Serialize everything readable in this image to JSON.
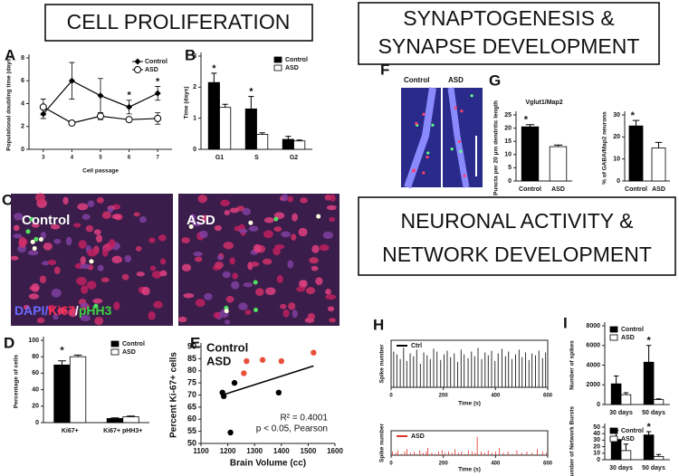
{
  "headings": {
    "cell": "CELL PROLIFERATION",
    "synapse": [
      "SYNAPTOGENESIS &",
      "SYNAPSE DEVELOPMENT"
    ],
    "neuronal": [
      "NEURONAL ACTIVITY &",
      "NETWORK DEVELOPMENT"
    ]
  },
  "panels": [
    "A",
    "B",
    "C",
    "D",
    "E",
    "F",
    "G",
    "H",
    "I"
  ],
  "image_labels": {
    "C": [
      "Control",
      "ASD"
    ],
    "F": [
      "Control",
      "ASD"
    ]
  },
  "stain_label": [
    "DAPI/",
    "Ki67",
    "/",
    "pHH3"
  ],
  "chart_data": [
    {
      "type": "line",
      "ylabel": "Populational doubling time (days)",
      "xlabel": "Cell passage",
      "x": [
        3,
        4,
        5,
        6,
        7
      ],
      "xlim": [
        2.5,
        7.5
      ],
      "xticks": [
        3,
        4,
        5,
        6,
        7
      ],
      "ylim": [
        0,
        8
      ],
      "yticks": [
        0,
        2,
        4,
        6,
        8
      ],
      "legend": "upper right",
      "series": [
        {
          "name": "Control",
          "color": "#000000",
          "marker": "diamond",
          "values": [
            3.1,
            6,
            4.7,
            3.7,
            4.9
          ],
          "errors": [
            0.4,
            1.6,
            1.5,
            0.6,
            0.6
          ]
        },
        {
          "name": "ASD",
          "color": "#000000",
          "marker": "circle-open",
          "values": [
            3.7,
            2.3,
            2.9,
            2.6,
            2.7
          ],
          "errors": [
            0.7,
            0.2,
            0.3,
            0.2,
            0.5
          ]
        }
      ],
      "stars": [
        null,
        null,
        null,
        "*",
        "*"
      ]
    },
    {
      "type": "bar",
      "ylabel": "Time (days)",
      "categories": [
        "G1",
        "S",
        "G2"
      ],
      "ylim": [
        0,
        3
      ],
      "yticks": [
        0,
        1,
        2,
        3
      ],
      "legend": "upper right",
      "series": [
        {
          "name": "Control",
          "color": "#000000",
          "values": [
            2.15,
            1.3,
            0.32
          ],
          "errors": [
            0.3,
            0.4,
            0.1
          ]
        },
        {
          "name": "ASD",
          "color": "#ffffff",
          "values": [
            1.35,
            0.48,
            0.27
          ],
          "errors": [
            0.1,
            0.05,
            0.03
          ]
        }
      ],
      "stars": [
        "*",
        "*",
        null
      ]
    },
    {
      "type": "bar",
      "ylabel": "Percentage of cells",
      "categories": [
        "Ki67+",
        "Ki67+ pHH3+"
      ],
      "ylim": [
        0,
        100
      ],
      "yticks": [
        0,
        20,
        40,
        60,
        80,
        100
      ],
      "legend": "upper right",
      "series": [
        {
          "name": "Control",
          "color": "#000000",
          "values": [
            70,
            5
          ],
          "errors": [
            5,
            0.8
          ]
        },
        {
          "name": "ASD",
          "color": "#ffffff",
          "values": [
            80,
            7
          ],
          "errors": [
            2,
            1
          ]
        }
      ],
      "stars": [
        "*",
        null
      ]
    },
    {
      "type": "scatter",
      "ylabel": "Percent Ki-67+ cells",
      "xlabel": "Brain Volume (cc)",
      "xlim": [
        1100,
        1600
      ],
      "xticks": [
        1100,
        1200,
        1300,
        1400,
        1500,
        1600
      ],
      "ylim": [
        50,
        90
      ],
      "yticks": [
        50,
        55,
        60,
        65,
        70,
        75,
        80,
        85,
        90
      ],
      "legend": "upper left",
      "series": [
        {
          "name": "Control",
          "color": "#000000",
          "x": [
            1180,
            1185,
            1210,
            1225,
            1390
          ],
          "values": [
            71,
            69.5,
            54.5,
            75,
            71
          ]
        },
        {
          "name": "ASD",
          "color": "#e8503a",
          "x": [
            1260,
            1270,
            1330,
            1400,
            1520
          ],
          "values": [
            79,
            84,
            84.5,
            84,
            87.5
          ]
        }
      ],
      "fit": {
        "x": [
          1180,
          1520
        ],
        "values": [
          70,
          82
        ]
      },
      "annotations": [
        "R² = 0.4001",
        "p < 0.05, Pearson"
      ]
    },
    {
      "type": "bar",
      "title": "Vglut1/Map2",
      "ylabel": "Puncta per 20 μm dendritic length",
      "categories": [
        "Control",
        "ASD"
      ],
      "ylim": [
        0,
        25
      ],
      "yticks": [
        0,
        5,
        10,
        15,
        20,
        25
      ],
      "values": [
        20.5,
        13
      ],
      "errors": [
        0.8,
        0.6
      ],
      "colors": [
        "#000000",
        "#ffffff"
      ],
      "stars": [
        "*",
        null
      ]
    },
    {
      "type": "bar",
      "ylabel": "% of GABA/Map2 neurons",
      "categories": [
        "Control",
        "ASD"
      ],
      "ylim": [
        0,
        30
      ],
      "yticks": [
        0,
        10,
        20,
        30
      ],
      "values": [
        25,
        15
      ],
      "errors": [
        2.5,
        2.5
      ],
      "colors": [
        "#000000",
        "#ffffff"
      ],
      "stars": [
        "*",
        null
      ]
    },
    {
      "type": "spike",
      "ylabel": "Spike number",
      "xlabel": "Time (s)",
      "xlim": [
        0,
        600
      ],
      "xticks": [
        0,
        200,
        400,
        600
      ],
      "ylim": [
        0,
        50
      ],
      "legend": "upper left",
      "frame": true,
      "x": [
        10,
        22,
        35,
        48,
        60,
        73,
        86,
        98,
        112,
        125,
        138,
        150,
        163,
        176,
        190,
        203,
        215,
        228,
        242,
        255,
        268,
        280,
        295,
        308,
        320,
        333,
        347,
        360,
        372,
        385,
        398,
        410,
        425,
        438,
        450,
        463,
        477,
        490,
        502,
        515,
        528,
        540,
        553,
        566,
        580,
        592
      ],
      "series": [
        {
          "name": "Ctrl",
          "color": "#000000",
          "values": [
            38,
            35,
            30,
            42,
            28,
            36,
            33,
            40,
            25,
            37,
            34,
            30,
            41,
            38,
            29,
            35,
            39,
            32,
            36,
            27,
            40,
            35,
            31,
            38,
            33,
            42,
            30,
            37,
            34,
            39,
            28,
            36,
            41,
            33,
            38,
            30,
            35,
            40,
            32,
            37,
            29,
            36,
            34,
            39,
            31,
            37
          ]
        }
      ]
    },
    {
      "type": "spike",
      "ylabel": "Spike number",
      "xlabel": "Time (s)",
      "xlim": [
        0,
        600
      ],
      "xticks": [
        0,
        200,
        400,
        600
      ],
      "ylim": [
        0,
        20
      ],
      "legend": "upper left",
      "frame": true,
      "x": [
        5,
        18,
        26,
        40,
        52,
        61,
        75,
        88,
        97,
        110,
        122,
        135,
        141,
        156,
        170,
        182,
        195,
        207,
        220,
        233,
        245,
        258,
        270,
        283,
        296,
        310,
        322,
        330,
        345,
        358,
        372,
        386,
        400,
        415,
        430,
        448,
        465,
        482,
        500,
        520,
        540,
        560,
        580,
        595
      ],
      "series": [
        {
          "name": "ASD",
          "color": "#e0302a",
          "values": [
            3,
            2,
            4,
            1,
            3,
            5,
            2,
            3,
            1,
            4,
            2,
            3,
            6,
            2,
            1,
            3,
            4,
            2,
            3,
            2,
            5,
            2,
            3,
            1,
            4,
            3,
            2,
            15,
            3,
            2,
            4,
            2,
            3,
            6,
            2,
            3,
            1,
            4,
            2,
            3,
            2,
            5,
            3,
            2
          ]
        }
      ]
    },
    {
      "type": "bar",
      "ylabel": "Number of spikes",
      "categories": [
        "30 days",
        "50 days"
      ],
      "ylim": [
        0,
        8000
      ],
      "yticks": [
        0,
        2000,
        4000,
        6000,
        8000
      ],
      "legend": "upper left",
      "series": [
        {
          "name": "Control",
          "color": "#000000",
          "values": [
            2100,
            4300
          ],
          "errors": [
            800,
            1700
          ]
        },
        {
          "name": "ASD",
          "color": "#ffffff",
          "values": [
            1000,
            500
          ],
          "errors": [
            200,
            80
          ]
        }
      ],
      "stars": [
        null,
        "*"
      ]
    },
    {
      "type": "bar",
      "ylabel": "Number of Network Bursts",
      "categories": [
        "30 days",
        "50 days"
      ],
      "ylim": [
        0,
        50
      ],
      "yticks": [
        0,
        10,
        20,
        30,
        40,
        50
      ],
      "legend": "upper left",
      "series": [
        {
          "name": "Control",
          "color": "#000000",
          "values": [
            31,
            38
          ],
          "errors": [
            14,
            5
          ]
        },
        {
          "name": "ASD",
          "color": "#ffffff",
          "values": [
            14,
            5
          ],
          "errors": [
            10,
            3
          ]
        }
      ],
      "stars": [
        null,
        "*"
      ]
    }
  ]
}
